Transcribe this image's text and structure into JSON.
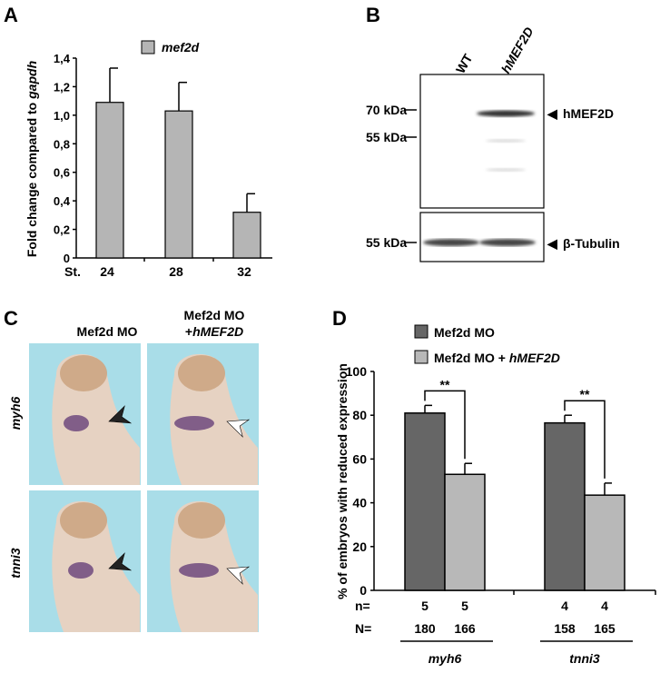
{
  "panels": {
    "a": "A",
    "b": "B",
    "c": "C",
    "d": "D"
  },
  "chart_data": [
    {
      "type": "bar",
      "panel": "A",
      "title": "",
      "legend": [
        "mef2d"
      ],
      "legend_placement": "top-center",
      "ylabel_prefix": "Fold change compared to ",
      "ylabel_italic": "gapdh",
      "xlabel_prefix": "St.",
      "categories": [
        "24",
        "28",
        "32"
      ],
      "values": [
        1.09,
        1.03,
        0.32
      ],
      "error_upper": [
        1.33,
        1.23,
        0.45
      ],
      "ylim": [
        0,
        1.4
      ],
      "yticks": [
        "0",
        "0,2",
        "0,4",
        "0,6",
        "0,8",
        "1,0",
        "1,2",
        "1,4"
      ],
      "colors": {
        "bar": "#b5b5b5"
      }
    },
    {
      "type": "bar",
      "panel": "D",
      "ylabel": "% of embryos with reduced expression",
      "ylim": [
        0,
        100
      ],
      "yticks": [
        "0",
        "20",
        "40",
        "60",
        "80",
        "100"
      ],
      "legend_placement": "top",
      "series": [
        {
          "name": "Mef2d MO",
          "name_italic": "",
          "color": "#666666",
          "values": [
            81,
            76.5
          ],
          "error_upper": [
            84.5,
            80
          ]
        },
        {
          "name": "Mef2d MO + ",
          "name_italic": "hMEF2D",
          "color": "#b8b8b8",
          "values": [
            53,
            43.5
          ],
          "error_upper": [
            58,
            49
          ]
        }
      ],
      "categories": [
        "myh6",
        "tnni3"
      ],
      "significance": [
        "**",
        "**"
      ],
      "n_label": "n=",
      "N_label": "N=",
      "n": [
        [
          "5",
          "5"
        ],
        [
          "4",
          "4"
        ]
      ],
      "N": [
        [
          "180",
          "166"
        ],
        [
          "158",
          "165"
        ]
      ]
    }
  ],
  "blot": {
    "lanes": [
      "WT",
      "hMEF2D"
    ],
    "markers_top": [
      "70 kDa",
      "55 kDa"
    ],
    "marker_bottom": "55 kDa",
    "band_top": "hMEF2D",
    "band_bottom": "β-Tubulin",
    "arrow": "◀"
  },
  "embryos": {
    "col_headers": [
      "Mef2d MO",
      "Mef2d MO",
      "+",
      "hMEF2D"
    ],
    "row_labels": [
      "myh6",
      "tnni3"
    ],
    "background": "#a9dde8"
  }
}
